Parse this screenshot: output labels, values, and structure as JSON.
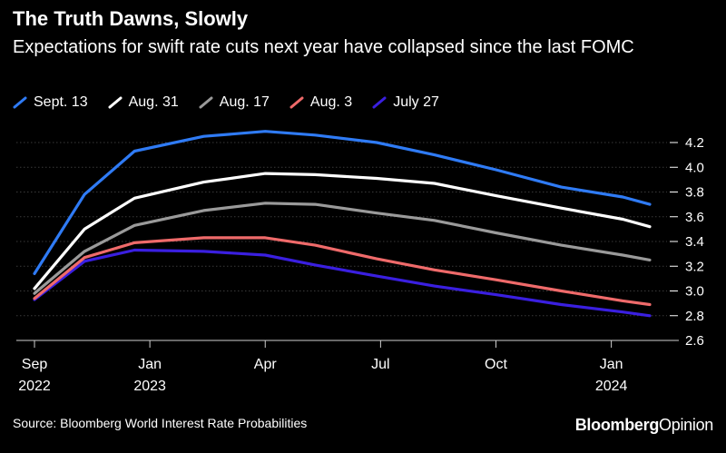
{
  "title": "The Truth Dawns, Slowly",
  "subtitle": "Expectations for swift rate cuts next year have collapsed since the last FOMC",
  "source": "Source: Bloomberg World Interest Rate Probabilities",
  "brand": {
    "part1": "Bloomberg",
    "part2": "Opinion"
  },
  "chart_data": {
    "type": "line",
    "title": "The Truth Dawns, Slowly",
    "subtitle": "Expectations for swift rate cuts next year have collapsed since the last FOMC",
    "xlabel": "",
    "ylabel": "",
    "ylim": [
      2.6,
      4.3
    ],
    "yticks": [
      2.6,
      2.8,
      3.0,
      3.2,
      3.4,
      3.6,
      3.8,
      4.0,
      4.2
    ],
    "xlim": [
      0,
      16
    ],
    "xticks": [
      {
        "pos": 0,
        "line1": "Sep",
        "line2": "2022"
      },
      {
        "pos": 3,
        "line1": "Jan",
        "line2": "2023"
      },
      {
        "pos": 6,
        "line1": "Apr",
        "line2": ""
      },
      {
        "pos": 9,
        "line1": "Jul",
        "line2": ""
      },
      {
        "pos": 12,
        "line1": "Oct",
        "line2": ""
      },
      {
        "pos": 15,
        "line1": "Jan",
        "line2": "2024"
      }
    ],
    "grid": true,
    "legend_position": "top-left",
    "x": [
      0,
      1.3,
      2.6,
      4.4,
      6.0,
      7.3,
      8.9,
      10.4,
      12.0,
      13.7,
      15.3,
      16.0
    ],
    "series": [
      {
        "name": "Sept. 13",
        "color": "#2f7bf5",
        "values": [
          3.14,
          3.78,
          4.13,
          4.25,
          4.29,
          4.26,
          4.2,
          4.1,
          3.98,
          3.84,
          3.76,
          3.7
        ]
      },
      {
        "name": "Aug. 31",
        "color": "#ffffff",
        "values": [
          3.02,
          3.5,
          3.75,
          3.88,
          3.95,
          3.94,
          3.91,
          3.87,
          3.77,
          3.67,
          3.58,
          3.52
        ]
      },
      {
        "name": "Aug. 17",
        "color": "#9a9a9a",
        "values": [
          2.98,
          3.32,
          3.53,
          3.65,
          3.71,
          3.7,
          3.63,
          3.57,
          3.47,
          3.37,
          3.29,
          3.25
        ]
      },
      {
        "name": "Aug. 3",
        "color": "#ef6a6a",
        "values": [
          2.94,
          3.27,
          3.39,
          3.43,
          3.43,
          3.37,
          3.26,
          3.17,
          3.09,
          3.0,
          2.92,
          2.89
        ]
      },
      {
        "name": "July 27",
        "color": "#3a1fe0",
        "values": [
          2.93,
          3.24,
          3.33,
          3.32,
          3.29,
          3.21,
          3.12,
          3.04,
          2.97,
          2.89,
          2.83,
          2.8
        ]
      }
    ]
  }
}
